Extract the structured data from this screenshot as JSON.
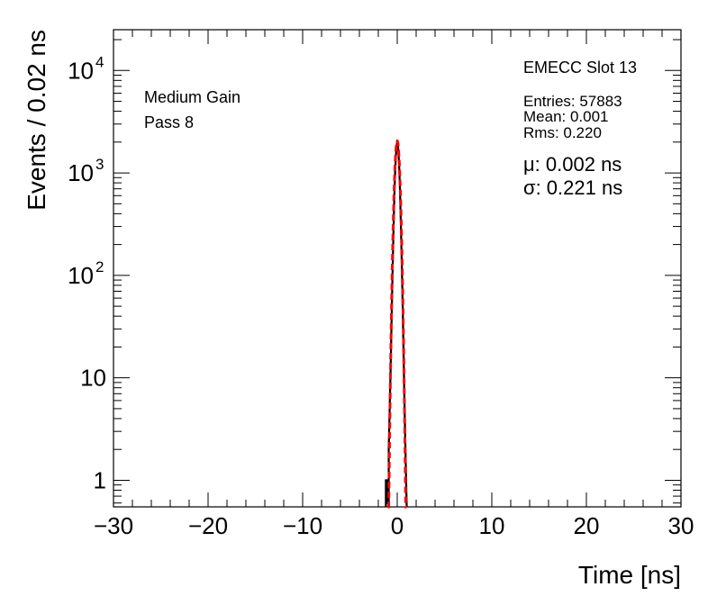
{
  "chart_data": {
    "type": "histogram",
    "xlabel": "Time [ns]",
    "ylabel": "Events / 0.02 ns",
    "xlim": [
      -30,
      30
    ],
    "ylim": [
      0.55,
      25000
    ],
    "log_y": true,
    "grid": false,
    "x_ticks": [
      -30,
      -20,
      -10,
      0,
      10,
      20,
      30
    ],
    "x_tick_labels": [
      "−30",
      "−20",
      "−10",
      "0",
      "10",
      "20",
      "30"
    ],
    "y_ticks": [
      {
        "value": 1,
        "base": "1",
        "exp": ""
      },
      {
        "value": 10,
        "base": "10",
        "exp": ""
      },
      {
        "value": 100,
        "base": "10",
        "exp": "2"
      },
      {
        "value": 1000,
        "base": "10",
        "exp": "3"
      },
      {
        "value": 10000,
        "base": "10",
        "exp": "4"
      }
    ],
    "histogram": {
      "color": "#000000",
      "points": [
        [
          -1.2,
          0
        ],
        [
          -1.2,
          1
        ],
        [
          -1.0,
          1
        ],
        [
          -1.0,
          0.6
        ],
        [
          -0.9,
          0.6
        ],
        [
          -0.9,
          2
        ],
        [
          -0.8,
          5
        ],
        [
          -0.7,
          12
        ],
        [
          -0.6,
          35
        ],
        [
          -0.5,
          100
        ],
        [
          -0.4,
          260
        ],
        [
          -0.3,
          620
        ],
        [
          -0.2,
          1150
        ],
        [
          -0.1,
          1700
        ],
        [
          0.0,
          2050
        ],
        [
          0.1,
          1750
        ],
        [
          0.2,
          1200
        ],
        [
          0.3,
          650
        ],
        [
          0.4,
          270
        ],
        [
          0.5,
          110
        ],
        [
          0.6,
          38
        ],
        [
          0.7,
          12
        ],
        [
          0.8,
          4
        ],
        [
          0.9,
          1.5
        ],
        [
          1.0,
          0
        ]
      ]
    },
    "fit": {
      "type": "gaussian",
      "color": "#ff0000",
      "amplitude": 2050,
      "mean": 0.002,
      "sigma": 0.221,
      "x_range": [
        -1.0,
        1.0
      ]
    },
    "annotations": {
      "left_lines": [
        "Medium Gain",
        "Pass 8"
      ],
      "slot_title": "EMECC Slot 13",
      "stats": [
        "Entries: 57883",
        "Mean: 0.001",
        "Rms: 0.220"
      ],
      "fit_mu": "μ: 0.002 ns",
      "fit_sigma": "σ: 0.221 ns"
    }
  }
}
